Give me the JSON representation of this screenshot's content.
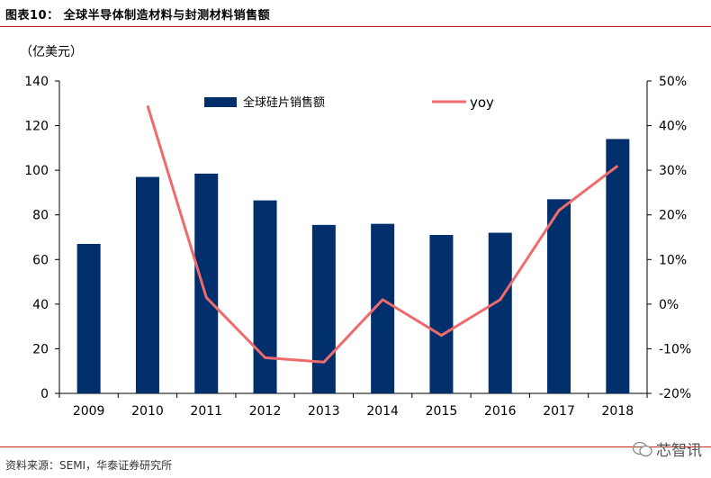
{
  "figure_title": "图表10：  全球半导体制造材料与封测材料销售额",
  "source_note": "资料来源：SEMI，华泰证券研究所",
  "watermark": "芯智讯",
  "colors": {
    "bar": "#002f6c",
    "line": "#ef6b6b",
    "rule": "#c4291c"
  },
  "chart_data": {
    "type": "bar",
    "title": "",
    "ylabel_left": "（亿美元）",
    "categories": [
      "2009",
      "2010",
      "2011",
      "2012",
      "2013",
      "2014",
      "2015",
      "2016",
      "2017",
      "2018"
    ],
    "series": [
      {
        "name": "全球硅片销售额",
        "type": "bar",
        "axis": "left",
        "values": [
          67,
          97,
          98.5,
          86.5,
          75.5,
          76,
          71,
          72,
          87,
          114
        ]
      },
      {
        "name": "yoy",
        "type": "line",
        "axis": "right",
        "values": [
          null,
          44.5,
          1.5,
          -12,
          -13,
          1,
          -7,
          1,
          21,
          31
        ]
      }
    ],
    "ylim_left": [
      0,
      140
    ],
    "yticks_left": [
      "0",
      "20",
      "40",
      "60",
      "80",
      "100",
      "120",
      "140"
    ],
    "ylim_right": [
      -20,
      50
    ],
    "yticks_right": [
      "-20%",
      "-10%",
      "0%",
      "10%",
      "20%",
      "30%",
      "40%",
      "50%"
    ],
    "grid": false,
    "legend_position": "top"
  }
}
